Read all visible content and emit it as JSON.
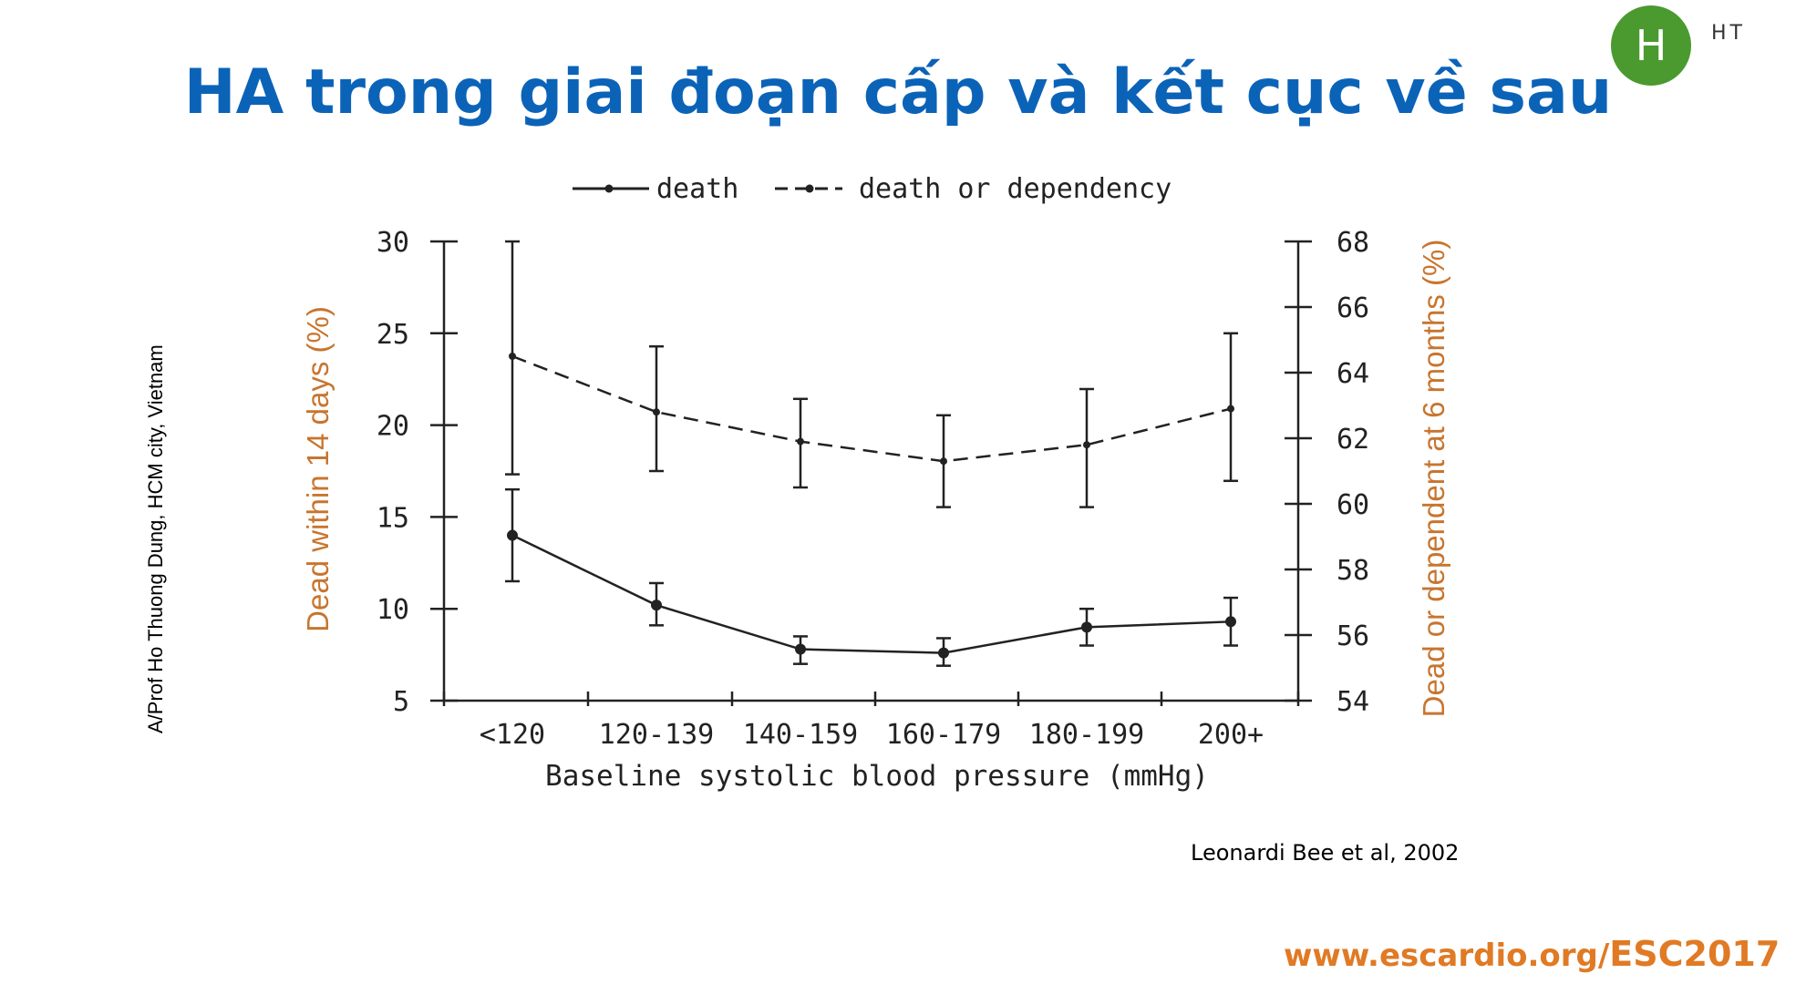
{
  "slide": {
    "title": "HA trong giai đoạn cấp và kết cục về sau",
    "avatar_letter": "H",
    "avatar_label": "HT",
    "author": "A/Prof Ho Thuong Dung, HCM city, Vietnam",
    "citation": "Leonardi Bee et al, 2002",
    "website_prefix": "www.escardio.org/",
    "website_suffix": "ESC2017",
    "colors": {
      "title": "#0b63b8",
      "axis_label": "#c8752e",
      "website": "#e07a24",
      "avatar": "#4a9a2f"
    }
  },
  "chart_data": {
    "type": "line",
    "categories": [
      "<120",
      "120-139",
      "140-159",
      "160-179",
      "180-199",
      "200+"
    ],
    "xlabel": "Baseline systolic blood pressure (mmHg)",
    "ylabel_left": "Dead within 14 days (%)",
    "ylabel_right": "Dead or dependent at 6 months (%)",
    "y_left": {
      "min": 5,
      "max": 30,
      "ticks": [
        30,
        25,
        20,
        15,
        10,
        5
      ]
    },
    "y_right": {
      "min": 54,
      "max": 68,
      "ticks": [
        68,
        66,
        64,
        62,
        60,
        58,
        56,
        54
      ]
    },
    "legend_position": "top",
    "series": [
      {
        "name": "death",
        "axis": "left",
        "style": "solid",
        "values": [
          14,
          10.2,
          7.8,
          7.6,
          9.0,
          9.3
        ],
        "err_low": [
          11.5,
          9.1,
          7.0,
          6.9,
          8.0,
          8.0
        ],
        "err_high": [
          16.5,
          11.4,
          8.5,
          8.4,
          10.0,
          10.6
        ]
      },
      {
        "name": "death or dependency",
        "axis": "right",
        "style": "dashed",
        "values": [
          64.5,
          62.8,
          61.9,
          61.3,
          61.8,
          62.9
        ],
        "err_low": [
          60.9,
          61.0,
          60.5,
          59.9,
          59.9,
          60.7
        ],
        "err_high": [
          68.0,
          64.8,
          63.2,
          62.7,
          63.5,
          65.2
        ]
      }
    ]
  }
}
